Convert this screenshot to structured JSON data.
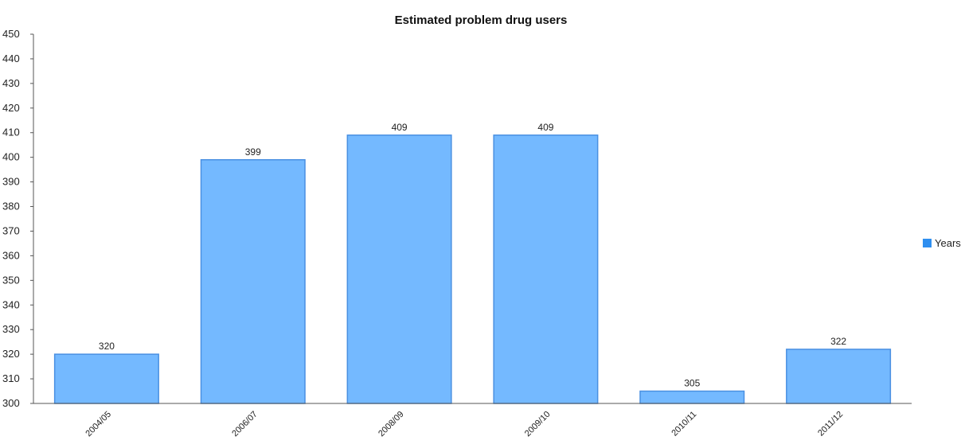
{
  "chart_data": {
    "type": "bar",
    "title": "Estimated problem drug users",
    "xlabel": "",
    "ylabel": "",
    "categories": [
      "2004/05",
      "2006/07",
      "2008/09",
      "2009/10",
      "2010/11",
      "2011/12"
    ],
    "series": [
      {
        "name": "Years",
        "values": [
          320,
          399,
          409,
          409,
          305,
          322
        ],
        "color": "#74b9ff",
        "edge_color": "#4a90e2"
      }
    ],
    "data_labels": [
      "320",
      "399",
      "409",
      "409",
      "305",
      "322"
    ],
    "ylim": [
      300,
      450
    ],
    "yticks": [
      "300",
      "310",
      "320",
      "330",
      "340",
      "350",
      "360",
      "370",
      "380",
      "390",
      "400",
      "410",
      "420",
      "430",
      "440",
      "450"
    ],
    "grid": false,
    "legend": {
      "position": "right",
      "marker_color": "#2f8ff0"
    }
  }
}
